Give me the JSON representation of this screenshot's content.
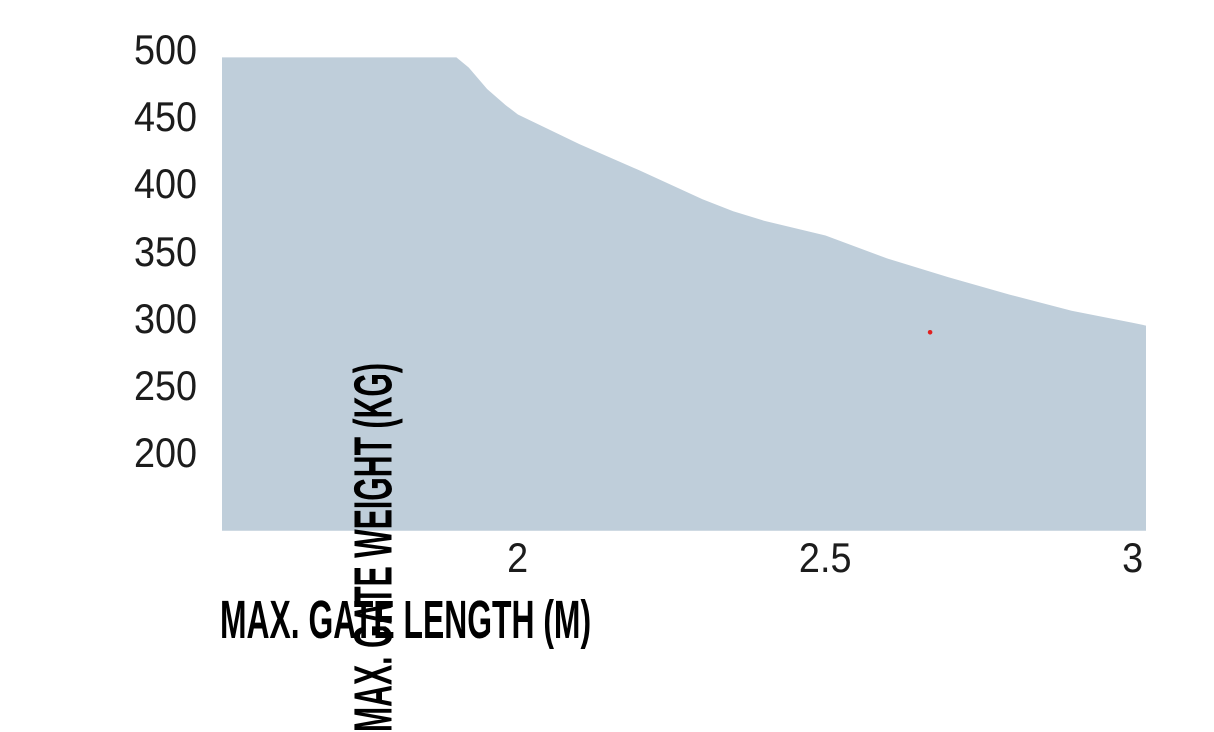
{
  "page": {
    "background_color": "#ffffff"
  },
  "chart_data": {
    "type": "area",
    "title": "",
    "xlabel": "MAX. GATE LENGTH (M)",
    "ylabel": "MAX. GATE WEIGHT (KG)",
    "grid": false,
    "legend_position": "none",
    "xlim": [
      1.519,
      3.021
    ],
    "ylim": [
      142.4,
      500
    ],
    "x_ticks": [
      {
        "value": 2.0,
        "label": "2"
      },
      {
        "value": 2.5,
        "label": "2.5"
      },
      {
        "value": 3.0,
        "label": "3"
      }
    ],
    "y_ticks": [
      {
        "value": 500,
        "label": "500"
      },
      {
        "value": 450,
        "label": "450"
      },
      {
        "value": 400,
        "label": "400"
      },
      {
        "value": 350,
        "label": "350"
      },
      {
        "value": 300,
        "label": "300"
      },
      {
        "value": 250,
        "label": "250"
      },
      {
        "value": 200,
        "label": "200"
      }
    ],
    "series": [
      {
        "name": "max-gate-weight-envelope",
        "kind": "filled-area-under-curve",
        "fill_color": "#bfceda",
        "points": [
          [
            1.519,
            494.5
          ],
          [
            1.9,
            494.5
          ],
          [
            1.92,
            487
          ],
          [
            1.95,
            471
          ],
          [
            1.98,
            459
          ],
          [
            2.0,
            452
          ],
          [
            2.1,
            430
          ],
          [
            2.2,
            410
          ],
          [
            2.3,
            389
          ],
          [
            2.35,
            380
          ],
          [
            2.4,
            373
          ],
          [
            2.5,
            362
          ],
          [
            2.6,
            345
          ],
          [
            2.7,
            331
          ],
          [
            2.8,
            318
          ],
          [
            2.9,
            306
          ],
          [
            3.0,
            297
          ],
          [
            3.021,
            295
          ]
        ]
      }
    ],
    "markers": [
      {
        "x": 2.67,
        "y": 290,
        "color": "#e02020",
        "shape": "dot"
      }
    ]
  }
}
